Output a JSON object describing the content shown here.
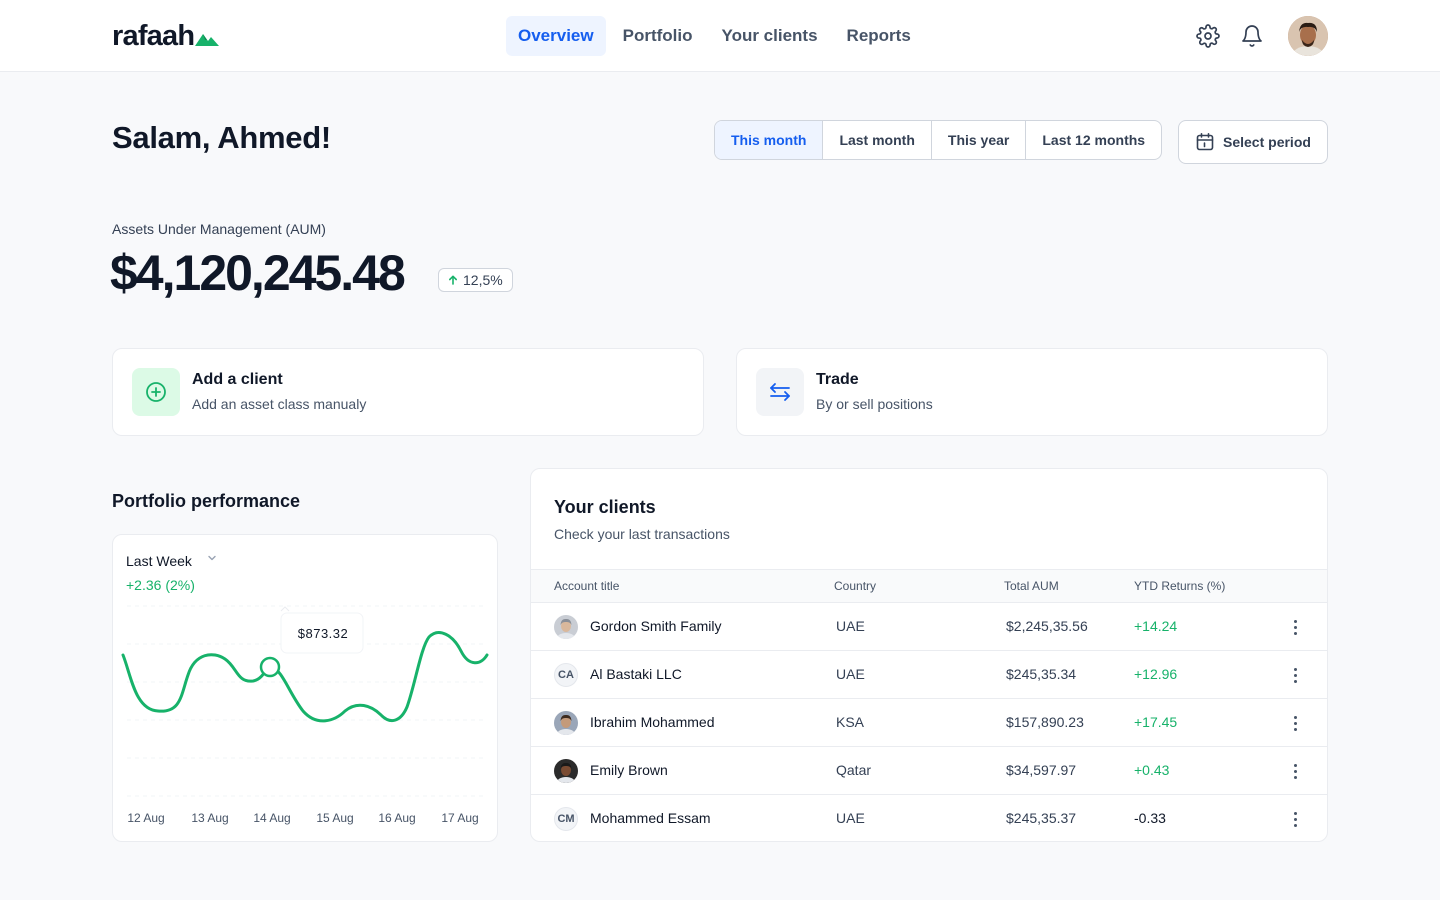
{
  "brand": {
    "name": "rafaah"
  },
  "nav": {
    "items": [
      {
        "label": "Overview",
        "active": true
      },
      {
        "label": "Portfolio",
        "active": false
      },
      {
        "label": "Your clients",
        "active": false
      },
      {
        "label": "Reports",
        "active": false
      }
    ]
  },
  "header_icons": [
    "gear-icon",
    "bell-icon",
    "avatar"
  ],
  "greeting": "Salam, Ahmed!",
  "periods": {
    "items": [
      {
        "label": "This month",
        "active": true
      },
      {
        "label": "Last month",
        "active": false
      },
      {
        "label": "This year",
        "active": false
      },
      {
        "label": "Last 12 months",
        "active": false
      }
    ],
    "select_label": "Select period"
  },
  "aum": {
    "label": "Assets Under Management (AUM)",
    "value": "$4,120,245.48",
    "change": "12,5%",
    "direction": "up"
  },
  "actions": [
    {
      "title": "Add a client",
      "subtitle": "Add an asset class manualy",
      "icon": "plus-circle-icon",
      "color": "#17b26a"
    },
    {
      "title": "Trade",
      "subtitle": "By or sell positions",
      "icon": "swap-arrows-icon",
      "color": "#155eef"
    }
  ],
  "performance": {
    "title": "Portfolio performance",
    "range": "Last Week",
    "change": "+2.36 (2%)",
    "tooltip": "$873.32"
  },
  "chart_data": {
    "type": "line",
    "x": [
      "12 Aug",
      "13 Aug",
      "14 Aug",
      "15 Aug",
      "16 Aug",
      "17 Aug"
    ],
    "tick_labels": [
      "12 Aug",
      "13 Aug",
      "14 Aug",
      "15 Aug",
      "16 Aug",
      "17 Aug"
    ],
    "series": [
      {
        "color": "#17b26a"
      }
    ],
    "annotation": "$873.32",
    "grid": true,
    "legend": "none"
  },
  "clients": {
    "title": "Your clients",
    "subtitle": "Check your last transactions",
    "columns": [
      "Account title",
      "Country",
      "Total AUM",
      "YTD Returns (%)"
    ],
    "rows": [
      {
        "name": "Gordon Smith Family",
        "initials": "",
        "avatar": "photo",
        "country": "UAE",
        "aum": "$2,245,35.56",
        "ytd": "+14.24",
        "positive": true
      },
      {
        "name": "Al Bastaki LLC",
        "initials": "CA",
        "avatar": "initials",
        "country": "UAE",
        "aum": "$245,35.34",
        "ytd": "+12.96",
        "positive": true
      },
      {
        "name": "Ibrahim Mohammed",
        "initials": "",
        "avatar": "photo",
        "country": "KSA",
        "aum": "$157,890.23",
        "ytd": "+17.45",
        "positive": true
      },
      {
        "name": "Emily Brown",
        "initials": "",
        "avatar": "photo",
        "country": "Qatar",
        "aum": "$34,597.97",
        "ytd": "+0.43",
        "positive": true
      },
      {
        "name": "Mohammed Essam",
        "initials": "CM",
        "avatar": "initials",
        "country": "UAE",
        "aum": "$245,35.37",
        "ytd": "-0.33",
        "positive": false
      }
    ]
  },
  "colors": {
    "accent": "#155eef",
    "positive": "#17b26a",
    "border": "#eaecf0",
    "background": "#f8f9fb"
  }
}
